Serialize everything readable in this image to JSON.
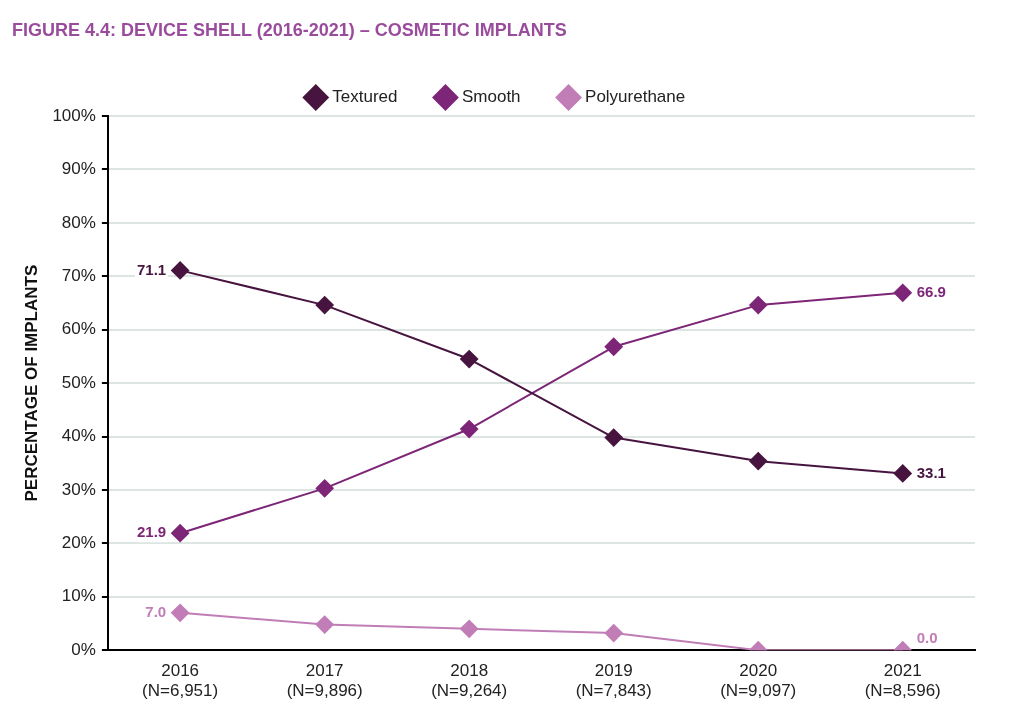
{
  "chart_data": {
    "type": "line",
    "title": "FIGURE 4.4: DEVICE SHELL (2016-2021) – COSMETIC IMPLANTS",
    "ylabel": "PERCENTAGE OF IMPLANTS",
    "categories": [
      "2016\n(N=6,951)",
      "2017\n(N=9,896)",
      "2018\n(N=9,264)",
      "2019\n(N=7,843)",
      "2020\n(N=9,097)",
      "2021\n(N=8,596)"
    ],
    "series": [
      {
        "name": "Textured",
        "color": "#47143f",
        "values": [
          71.1,
          64.6,
          54.5,
          39.8,
          35.4,
          33.1
        ],
        "value_labels": [
          "71.1",
          null,
          null,
          null,
          null,
          "33.1"
        ]
      },
      {
        "name": "Smooth",
        "color": "#7d2577",
        "values": [
          21.9,
          30.3,
          41.4,
          56.8,
          64.6,
          66.9
        ],
        "value_labels": [
          "21.9",
          null,
          null,
          null,
          null,
          "66.9"
        ]
      },
      {
        "name": "Polyurethane",
        "color": "#c17db6",
        "values": [
          7.0,
          4.8,
          4.0,
          3.2,
          0.0,
          0.0
        ],
        "value_labels": [
          "7.0",
          null,
          null,
          null,
          null,
          "0.0"
        ]
      }
    ],
    "ylim": [
      0,
      100
    ],
    "yticks": [
      {
        "value": 0,
        "label": "0%"
      },
      {
        "value": 10,
        "label": "10%"
      },
      {
        "value": 20,
        "label": "20%"
      },
      {
        "value": 30,
        "label": "30%"
      },
      {
        "value": 40,
        "label": "40%"
      },
      {
        "value": 50,
        "label": "50%"
      },
      {
        "value": 60,
        "label": "60%"
      },
      {
        "value": 70,
        "label": "70%"
      },
      {
        "value": 80,
        "label": "80%"
      },
      {
        "value": 90,
        "label": "90%"
      },
      {
        "value": 100,
        "label": "100%"
      }
    ],
    "grid": "y",
    "legend": "top",
    "marker": "diamond",
    "line_style": "solid"
  }
}
